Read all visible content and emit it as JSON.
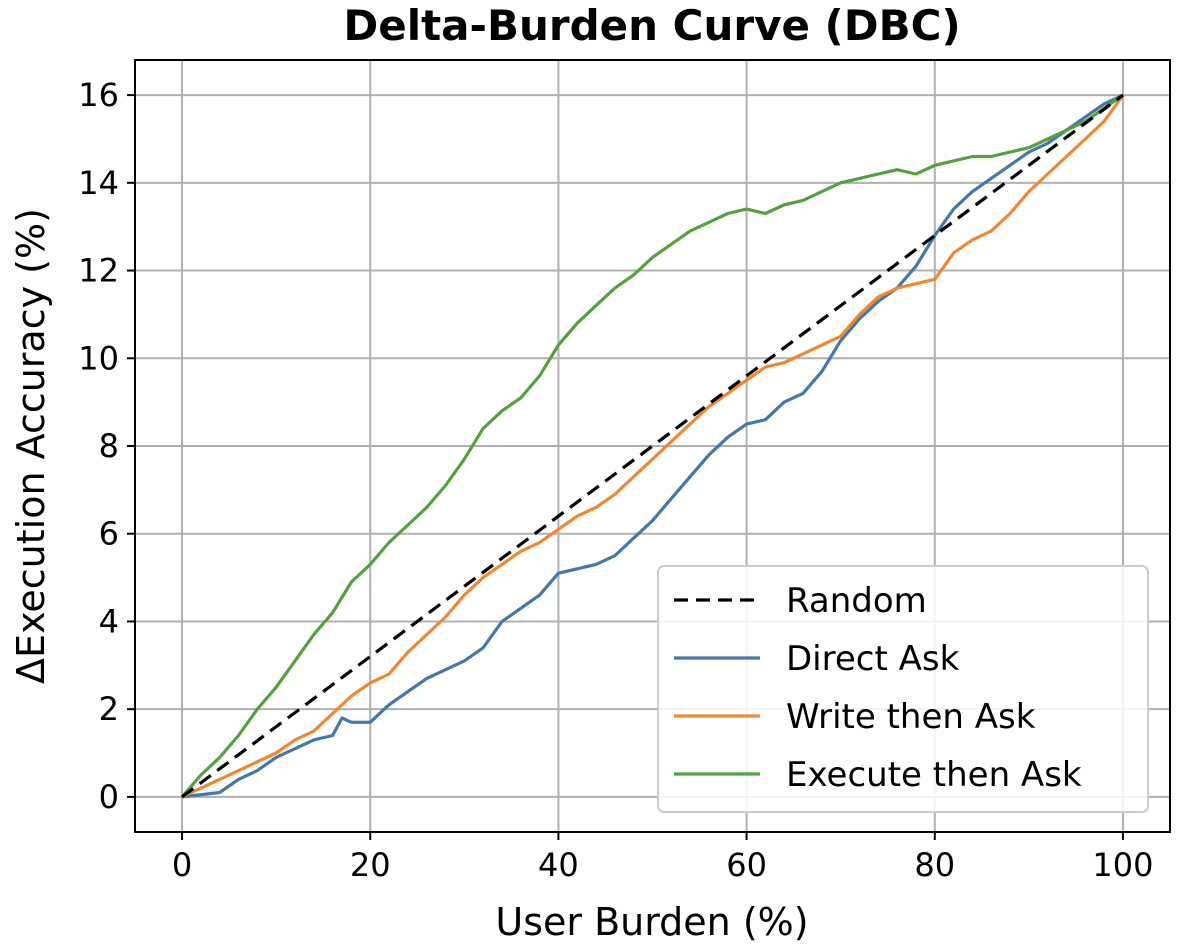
{
  "chart_data": {
    "type": "line",
    "title": "Delta-Burden Curve (DBC)",
    "xlabel": "User Burden (%)",
    "ylabel": "ΔExecution Accuracy (%)",
    "xlim": [
      -5,
      105
    ],
    "ylim": [
      -0.8,
      16.8
    ],
    "xticks": [
      0,
      20,
      40,
      60,
      80,
      100
    ],
    "yticks": [
      0,
      2,
      4,
      6,
      8,
      10,
      12,
      14,
      16
    ],
    "grid": true,
    "legend_position": "lower-right",
    "series": [
      {
        "name": "Random",
        "color": "#000000",
        "dash": true,
        "x": [
          0,
          100
        ],
        "y": [
          0,
          16
        ]
      },
      {
        "name": "Direct Ask",
        "color": "#4477aa",
        "dash": false,
        "x": [
          0,
          2,
          4,
          6,
          8,
          10,
          12,
          14,
          16,
          17,
          18,
          20,
          22,
          24,
          26,
          28,
          30,
          32,
          34,
          36,
          38,
          40,
          42,
          44,
          46,
          48,
          50,
          52,
          54,
          56,
          58,
          60,
          62,
          64,
          66,
          68,
          70,
          72,
          74,
          76,
          78,
          80,
          82,
          84,
          86,
          88,
          90,
          92,
          94,
          96,
          98,
          100
        ],
        "y": [
          0,
          0.05,
          0.1,
          0.4,
          0.6,
          0.9,
          1.1,
          1.3,
          1.4,
          1.8,
          1.7,
          1.7,
          2.1,
          2.4,
          2.7,
          2.9,
          3.1,
          3.4,
          4.0,
          4.3,
          4.6,
          5.1,
          5.2,
          5.3,
          5.5,
          5.9,
          6.3,
          6.8,
          7.3,
          7.8,
          8.2,
          8.5,
          8.6,
          9.0,
          9.2,
          9.7,
          10.4,
          10.9,
          11.3,
          11.6,
          12.1,
          12.8,
          13.4,
          13.8,
          14.1,
          14.4,
          14.7,
          14.9,
          15.2,
          15.5,
          15.8,
          16.0
        ]
      },
      {
        "name": "Write then Ask",
        "color": "#ee8833",
        "dash": false,
        "x": [
          0,
          2,
          4,
          6,
          8,
          10,
          12,
          14,
          16,
          18,
          20,
          22,
          24,
          26,
          28,
          30,
          32,
          34,
          36,
          38,
          40,
          42,
          44,
          46,
          48,
          50,
          52,
          54,
          56,
          58,
          60,
          62,
          64,
          66,
          68,
          70,
          72,
          74,
          76,
          78,
          80,
          82,
          84,
          86,
          88,
          90,
          92,
          94,
          96,
          98,
          100
        ],
        "y": [
          0,
          0.2,
          0.4,
          0.6,
          0.8,
          1.0,
          1.3,
          1.5,
          1.9,
          2.3,
          2.6,
          2.8,
          3.3,
          3.7,
          4.1,
          4.6,
          5.0,
          5.3,
          5.6,
          5.8,
          6.1,
          6.4,
          6.6,
          6.9,
          7.3,
          7.7,
          8.1,
          8.5,
          8.9,
          9.2,
          9.5,
          9.8,
          9.9,
          10.1,
          10.3,
          10.5,
          11.0,
          11.4,
          11.6,
          11.7,
          11.8,
          12.4,
          12.7,
          12.9,
          13.3,
          13.8,
          14.2,
          14.6,
          15.0,
          15.4,
          16.0
        ]
      },
      {
        "name": "Execute then Ask",
        "color": "#55a040",
        "dash": false,
        "x": [
          0,
          2,
          4,
          6,
          8,
          10,
          12,
          14,
          16,
          18,
          20,
          22,
          24,
          26,
          28,
          30,
          32,
          34,
          36,
          38,
          40,
          42,
          44,
          46,
          48,
          50,
          52,
          54,
          56,
          58,
          60,
          62,
          64,
          66,
          68,
          70,
          72,
          74,
          76,
          78,
          80,
          82,
          84,
          86,
          88,
          90,
          92,
          94,
          96,
          98,
          100
        ],
        "y": [
          0,
          0.5,
          0.9,
          1.4,
          2.0,
          2.5,
          3.1,
          3.7,
          4.2,
          4.9,
          5.3,
          5.8,
          6.2,
          6.6,
          7.1,
          7.7,
          8.4,
          8.8,
          9.1,
          9.6,
          10.3,
          10.8,
          11.2,
          11.6,
          11.9,
          12.3,
          12.6,
          12.9,
          13.1,
          13.3,
          13.4,
          13.3,
          13.5,
          13.6,
          13.8,
          14.0,
          14.1,
          14.2,
          14.3,
          14.2,
          14.4,
          14.5,
          14.6,
          14.6,
          14.7,
          14.8,
          15.0,
          15.2,
          15.4,
          15.7,
          16.0
        ]
      }
    ]
  }
}
